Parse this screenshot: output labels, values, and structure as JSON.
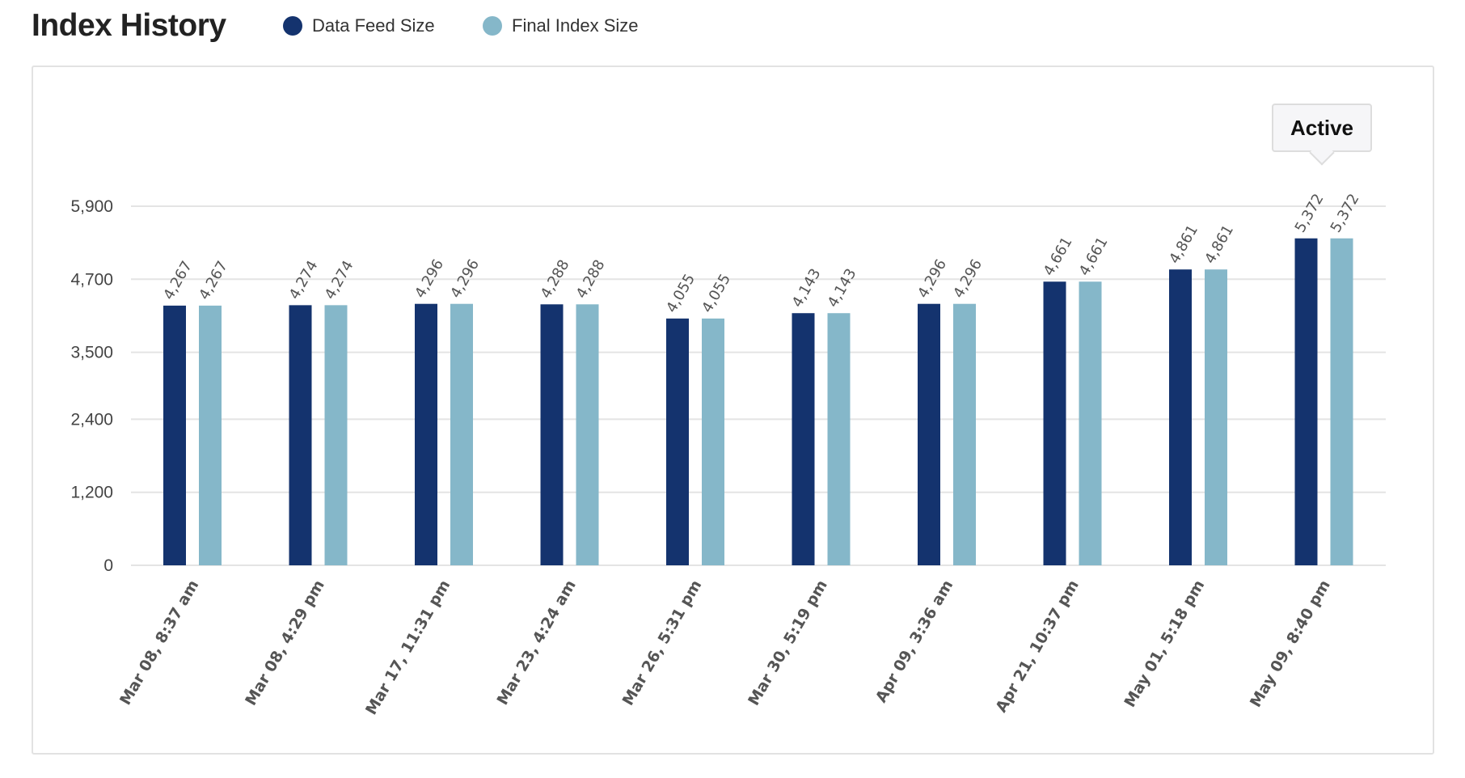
{
  "header": {
    "title": "Index History"
  },
  "chart_data": {
    "type": "bar",
    "title": "Index History",
    "xlabel": "",
    "ylabel": "",
    "ylim": [
      0,
      5900
    ],
    "yticks": [
      0,
      1200,
      2400,
      3500,
      4700,
      5900
    ],
    "ytick_labels": [
      "0",
      "1,200",
      "2,400",
      "3,500",
      "4,700",
      "5,900"
    ],
    "grid": true,
    "legend_position": "top",
    "categories": [
      "Mar 08, 8:37 am",
      "Mar 08, 4:29 pm",
      "Mar 17, 11:31 pm",
      "Mar 23, 4:24 am",
      "Mar 26, 5:31 pm",
      "Mar 30, 5:19 pm",
      "Apr 09, 3:36 am",
      "Apr 21, 10:37 pm",
      "May 01, 5:18 pm",
      "May 09, 8:40 pm"
    ],
    "series": [
      {
        "name": "Data Feed Size",
        "color": "#14336e",
        "values": [
          4267,
          4274,
          4296,
          4288,
          4055,
          4143,
          4296,
          4661,
          4861,
          5372
        ]
      },
      {
        "name": "Final Index Size",
        "color": "#85b7c9",
        "values": [
          4267,
          4274,
          4296,
          4288,
          4055,
          4143,
          4296,
          4661,
          4861,
          5372
        ]
      }
    ],
    "annotations": [
      {
        "category": "May 09, 8:40 pm",
        "text": "Active"
      }
    ]
  }
}
